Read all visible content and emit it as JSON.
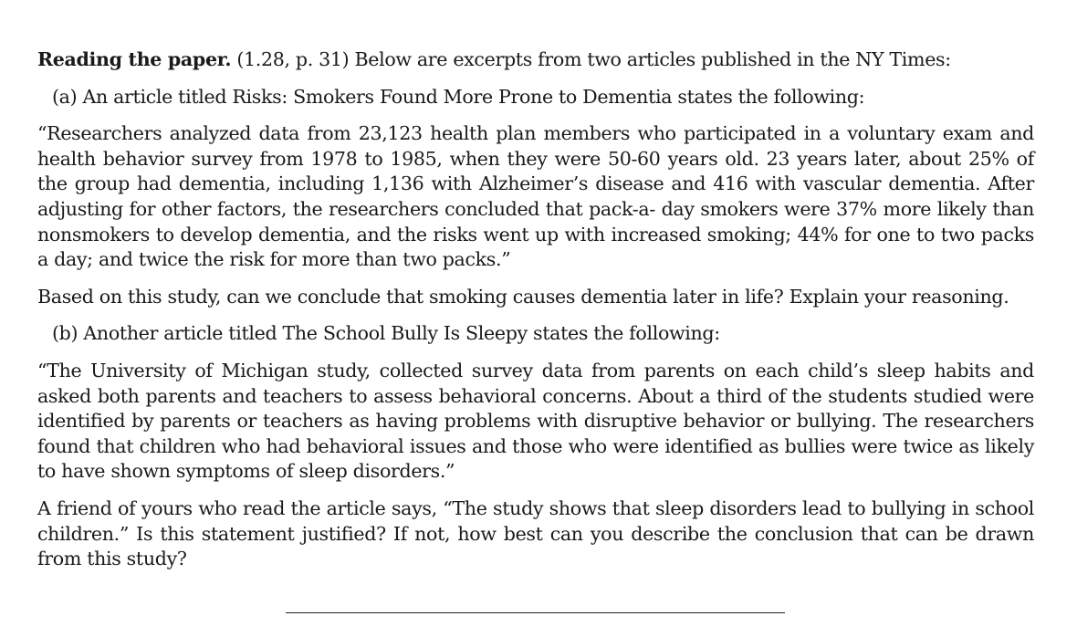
{
  "heading": {
    "title": "Reading the paper.",
    "rest": "(1.28, p. 31) Below are excerpts from two articles published in the NY Times:"
  },
  "parts": [
    {
      "label": "(a)",
      "intro": "An article titled Risks: Smokers Found More Prone to Dementia states the following:",
      "quote": "“Researchers analyzed data from 23,123 health plan members who participated in a voluntary exam and health behavior survey from 1978 to 1985, when they were 50-60 years old. 23 years later, about 25% of the group had dementia, including 1,136 with Alzheimer’s disease and 416 with vascular dementia. After adjusting for other factors, the researchers concluded that pack-a- day smokers were 37% more likely than nonsmokers to develop dementia, and the risks went up with increased smoking; 44% for one to two packs a day; and twice the risk for more than two packs.”",
      "question": "Based on this study, can we conclude that smoking causes dementia later in life? Explain your reasoning."
    },
    {
      "label": "(b)",
      "intro": "Another article titled The School Bully Is Sleepy states the following:",
      "quote": "“The University of Michigan study, collected survey data from parents on each child’s sleep habits and asked both parents and teachers to assess behavioral concerns. About a third of the students studied were identified by parents or teachers as having problems with disruptive behavior or bullying. The researchers found that children who had behavioral issues and those who were identified as bullies were twice as likely to have shown symptoms of sleep disorders.”",
      "question": "A friend of yours who read the article says, “The study shows that sleep disorders lead to bullying in school children.” Is this statement justified? If not, how best can you describe the conclusion that can be drawn from this study?"
    }
  ]
}
